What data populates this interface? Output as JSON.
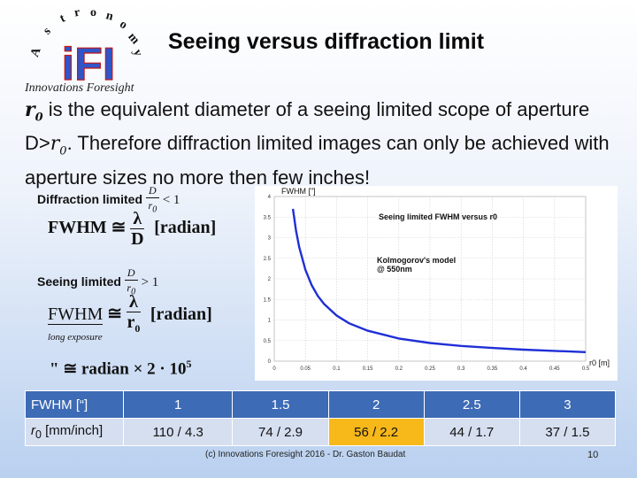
{
  "logo": {
    "letters": [
      "A",
      "s",
      "t",
      "r",
      "o",
      "n",
      "o",
      "m",
      "y"
    ],
    "mark": "iFI",
    "subtitle": "Innovations Foresight"
  },
  "title": "Seeing versus diffraction limit",
  "intro": {
    "r0": "r",
    "r0_sub": "0",
    "p1": " is the equivalent diameter of a seeing limited scope of aperture D>",
    "p2": ". Therefore diffraction limited images can only be achieved with aperture sizes no more then few inches!"
  },
  "formulas": {
    "diffraction_label": "Diffraction limited",
    "seeing_label": "Seeing limited",
    "cond_num": "D",
    "cond_den": "r",
    "cond_den_sub": "0",
    "cond_lt": "< 1",
    "cond_gt": "> 1",
    "fwhm": "FWHM",
    "approx": "≅",
    "lambda": "λ",
    "D": "D",
    "r0": "r",
    "r0_sub": "0",
    "radian": "[radian]",
    "long_exposure": "long exposure",
    "arcsec": "\"",
    "conv_rest": " ≅  radian  ×  2 · 10",
    "conv_exp": "5"
  },
  "chart_data": {
    "type": "line",
    "title": "Seeing limited FWHM versus r0",
    "annotation_line1": "Kolmogorov's model",
    "annotation_line2": "@ 550nm",
    "ylabel": "FWHM [\"]",
    "xlabel": "r0 [m]",
    "xlim": [
      0,
      0.5
    ],
    "ylim": [
      0,
      4
    ],
    "xticks": [
      "0",
      "0.05",
      "0.1",
      "0.15",
      "0.2",
      "0.25",
      "0.3",
      "0.35",
      "0.4",
      "0.45",
      "0.5"
    ],
    "yticks": [
      "0",
      "0.5",
      "1",
      "1.5",
      "2",
      "2.5",
      "3",
      "3.5",
      "4"
    ],
    "x": [
      0.03,
      0.035,
      0.04,
      0.05,
      0.06,
      0.07,
      0.08,
      0.1,
      0.12,
      0.15,
      0.2,
      0.25,
      0.3,
      0.35,
      0.4,
      0.45,
      0.5
    ],
    "y": [
      3.7,
      3.17,
      2.77,
      2.22,
      1.85,
      1.58,
      1.39,
      1.11,
      0.92,
      0.74,
      0.55,
      0.44,
      0.37,
      0.32,
      0.28,
      0.25,
      0.22
    ],
    "line_color": "#1f2fd6"
  },
  "table": {
    "header": [
      "FWHM [“]",
      "1",
      "1.5",
      "2",
      "2.5",
      "3"
    ],
    "row_label_r": "r",
    "row_label_sub": "0",
    "row_label_rest": " [mm/inch]",
    "row": [
      "110 / 4.3",
      "74 / 2.9",
      "56 / 2.2",
      "44 / 1.7",
      "37 / 1.5"
    ],
    "highlight_color": "#f7b81a"
  },
  "footer": "(c) Innovations Foresight 2016 - Dr. Gaston Baudat",
  "page_number": "10"
}
